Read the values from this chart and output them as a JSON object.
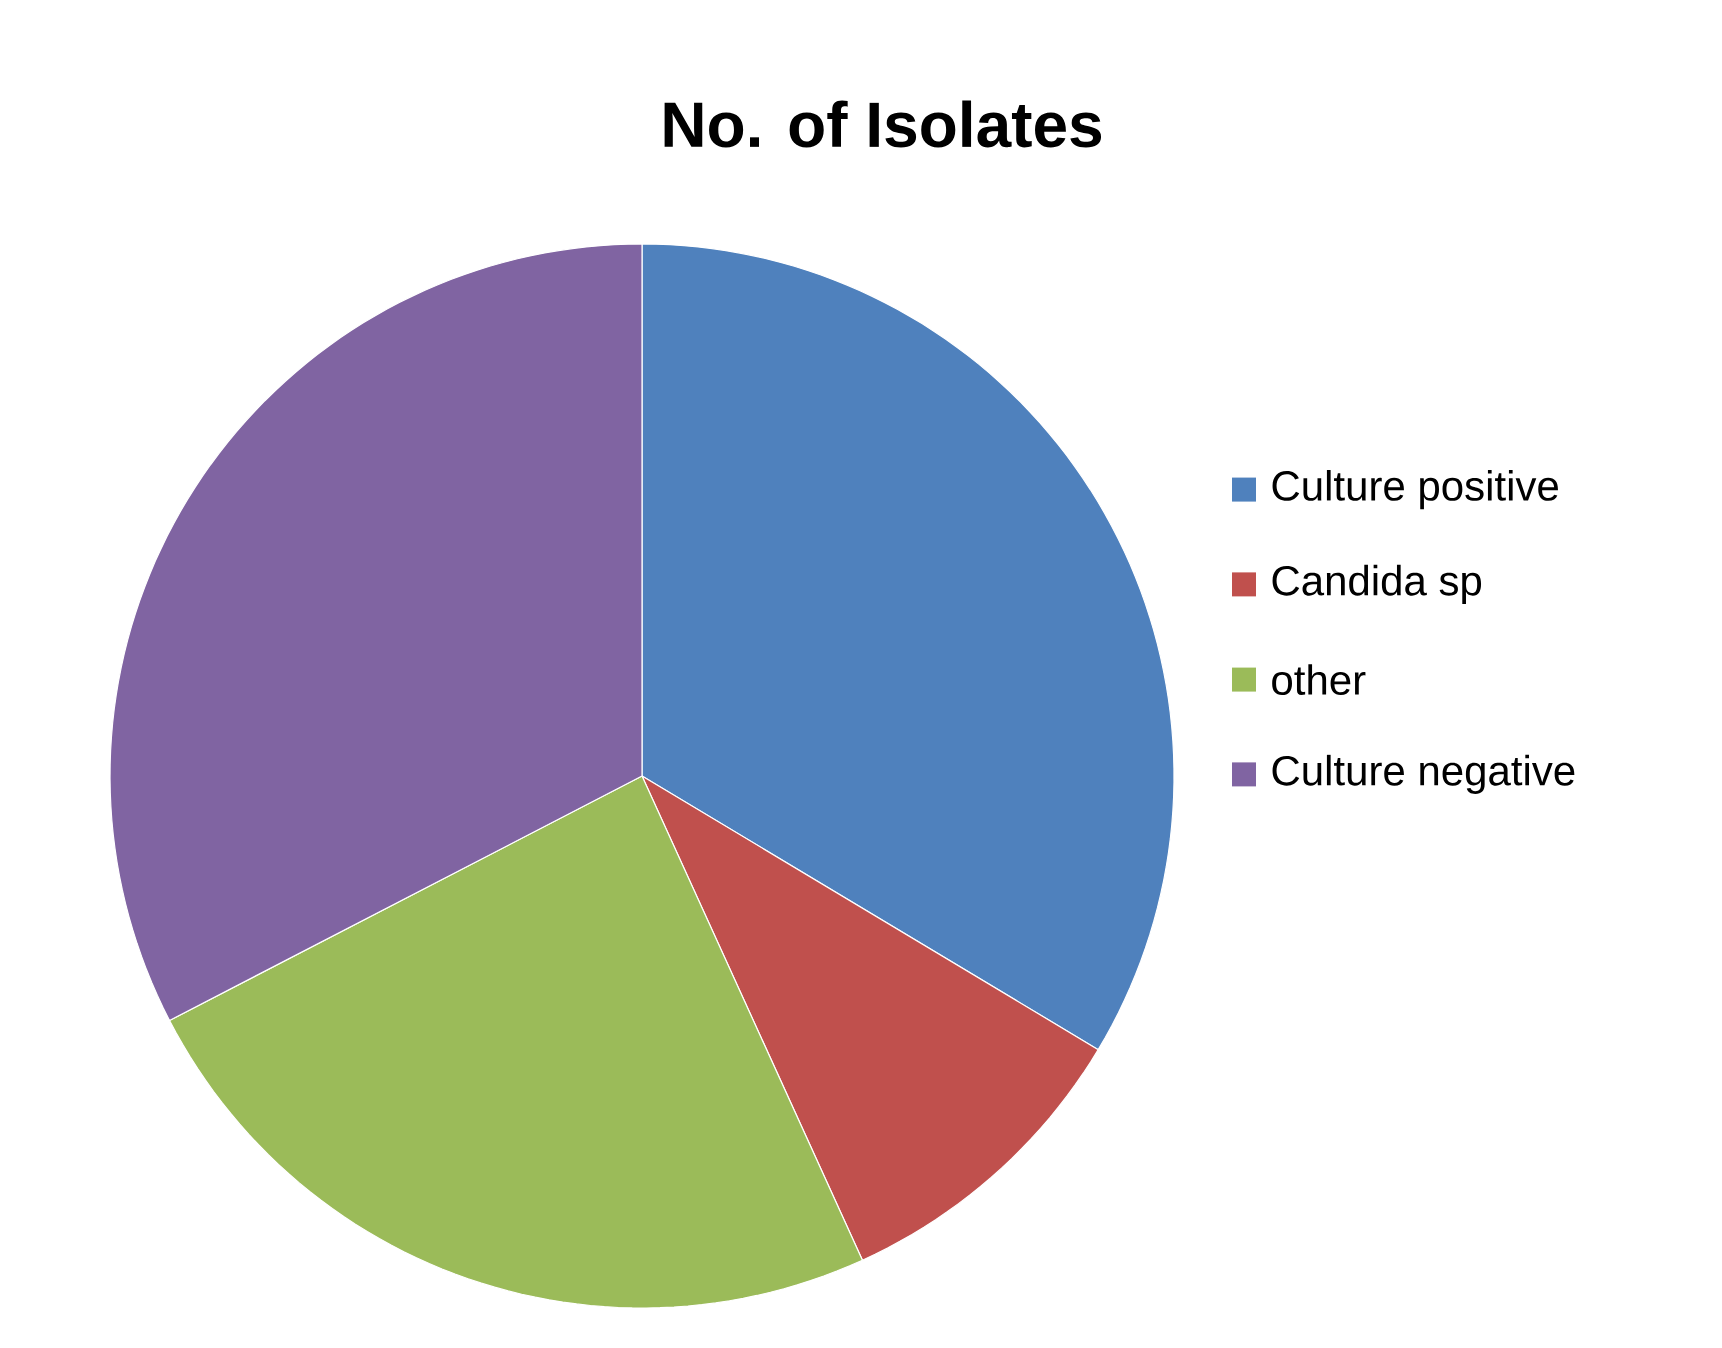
{
  "chart_data": {
    "type": "pie",
    "title": "No. of Isolates",
    "categories": [
      "Culture positive",
      "Candida sp",
      "other",
      "Culture negative"
    ],
    "values": [
      33.6,
      9.6,
      24.2,
      32.6
    ],
    "colors": [
      "#4f81bd",
      "#c0504d",
      "#9bbb59",
      "#8064a2"
    ],
    "legend": "right"
  }
}
